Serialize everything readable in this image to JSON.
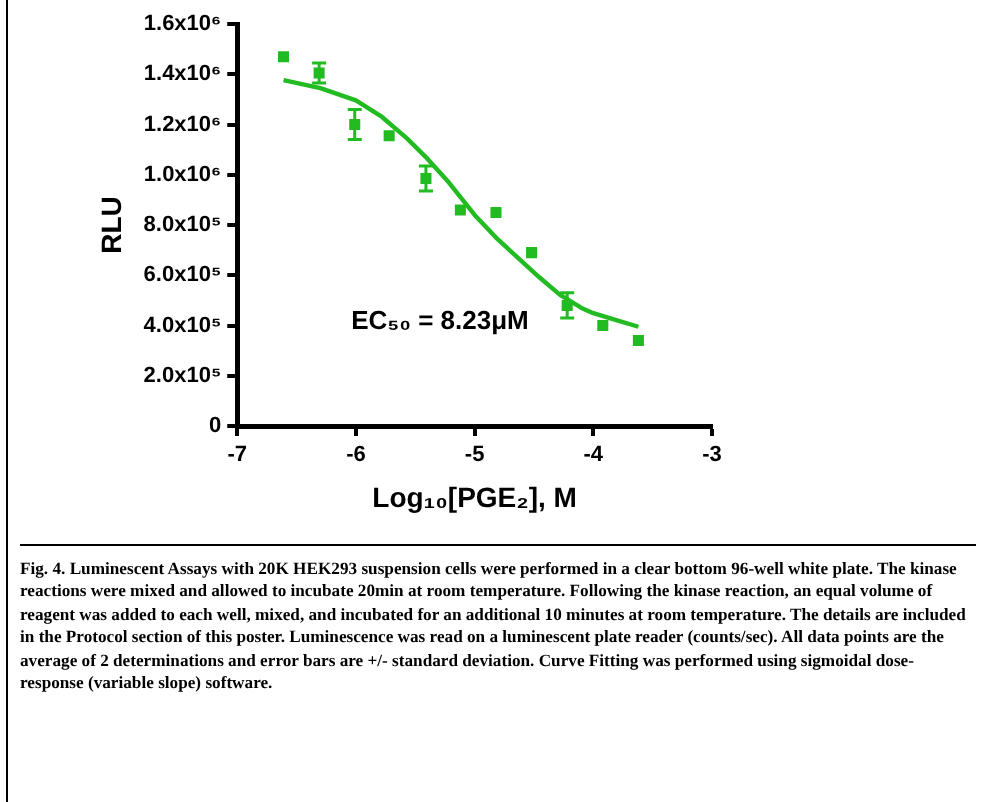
{
  "chart_data": {
    "type": "scatter",
    "xlabel": "Log₁₀[PGE₂], M",
    "ylabel": "RLU",
    "xlim": [
      -7,
      -3
    ],
    "xticks": [
      -7,
      -6,
      -5,
      -4,
      -3
    ],
    "ylim": [
      0,
      1600000
    ],
    "yticks": [
      {
        "value": 0,
        "label": "0"
      },
      {
        "value": 200000,
        "label": "2.0x10⁵"
      },
      {
        "value": 400000,
        "label": "4.0x10⁵"
      },
      {
        "value": 600000,
        "label": "6.0x10⁵"
      },
      {
        "value": 800000,
        "label": "8.0x10⁵"
      },
      {
        "value": 1000000,
        "label": "1.0x10⁶"
      },
      {
        "value": 1200000,
        "label": "1.2x10⁶"
      },
      {
        "value": 1400000,
        "label": "1.4x10⁶"
      },
      {
        "value": 1600000,
        "label": "1.6x10⁶"
      }
    ],
    "grid": false,
    "legend": false,
    "series": [
      {
        "type": "scatter",
        "color": "#22bb22",
        "marker": "square",
        "x": [
          -6.61,
          -6.31,
          -6.01,
          -5.72,
          -5.41,
          -5.12,
          -4.82,
          -4.52,
          -4.22,
          -3.92,
          -3.62
        ],
        "values": [
          1470000,
          1405000,
          1200000,
          1155000,
          985000,
          860000,
          850000,
          690000,
          480000,
          400000,
          340000
        ],
        "errors": [
          null,
          40000,
          60000,
          null,
          50000,
          null,
          null,
          null,
          50000,
          null,
          null
        ]
      },
      {
        "type": "line",
        "color": "#22bb22",
        "marker": "none",
        "x": [
          -6.61,
          -6.3,
          -6.0,
          -5.78,
          -5.57,
          -5.4,
          -5.22,
          -5.0,
          -4.82,
          -4.63,
          -4.45,
          -4.28,
          -4.1,
          -4.0,
          -3.8,
          -3.62
        ],
        "values": [
          1377000,
          1345000,
          1296000,
          1230000,
          1145000,
          1065000,
          971000,
          840000,
          750000,
          667000,
          590000,
          522000,
          470000,
          449000,
          420000,
          395000
        ]
      }
    ],
    "annotations": [
      "EC₅₀ = 8.23μM",
      "Fig. 4. Luminescent Assays with 20K HEK293 suspension cells were performed in a clear bottom 96-well white plate. The kinase reactions were mixed and allowed to incubate 20min at room temperature. Following the kinase reaction, an equal volume of reagent was added to each well, mixed, and incubated for an additional 10 minutes at room temperature. The details are included in the Protocol section of this poster. Luminescence was read on a luminescent plate reader (counts/sec). All data points are the average of 2 determinations and error bars are +/- standard deviation. Curve Fitting was performed using sigmoidal dose-response (variable slope) software."
    ]
  }
}
